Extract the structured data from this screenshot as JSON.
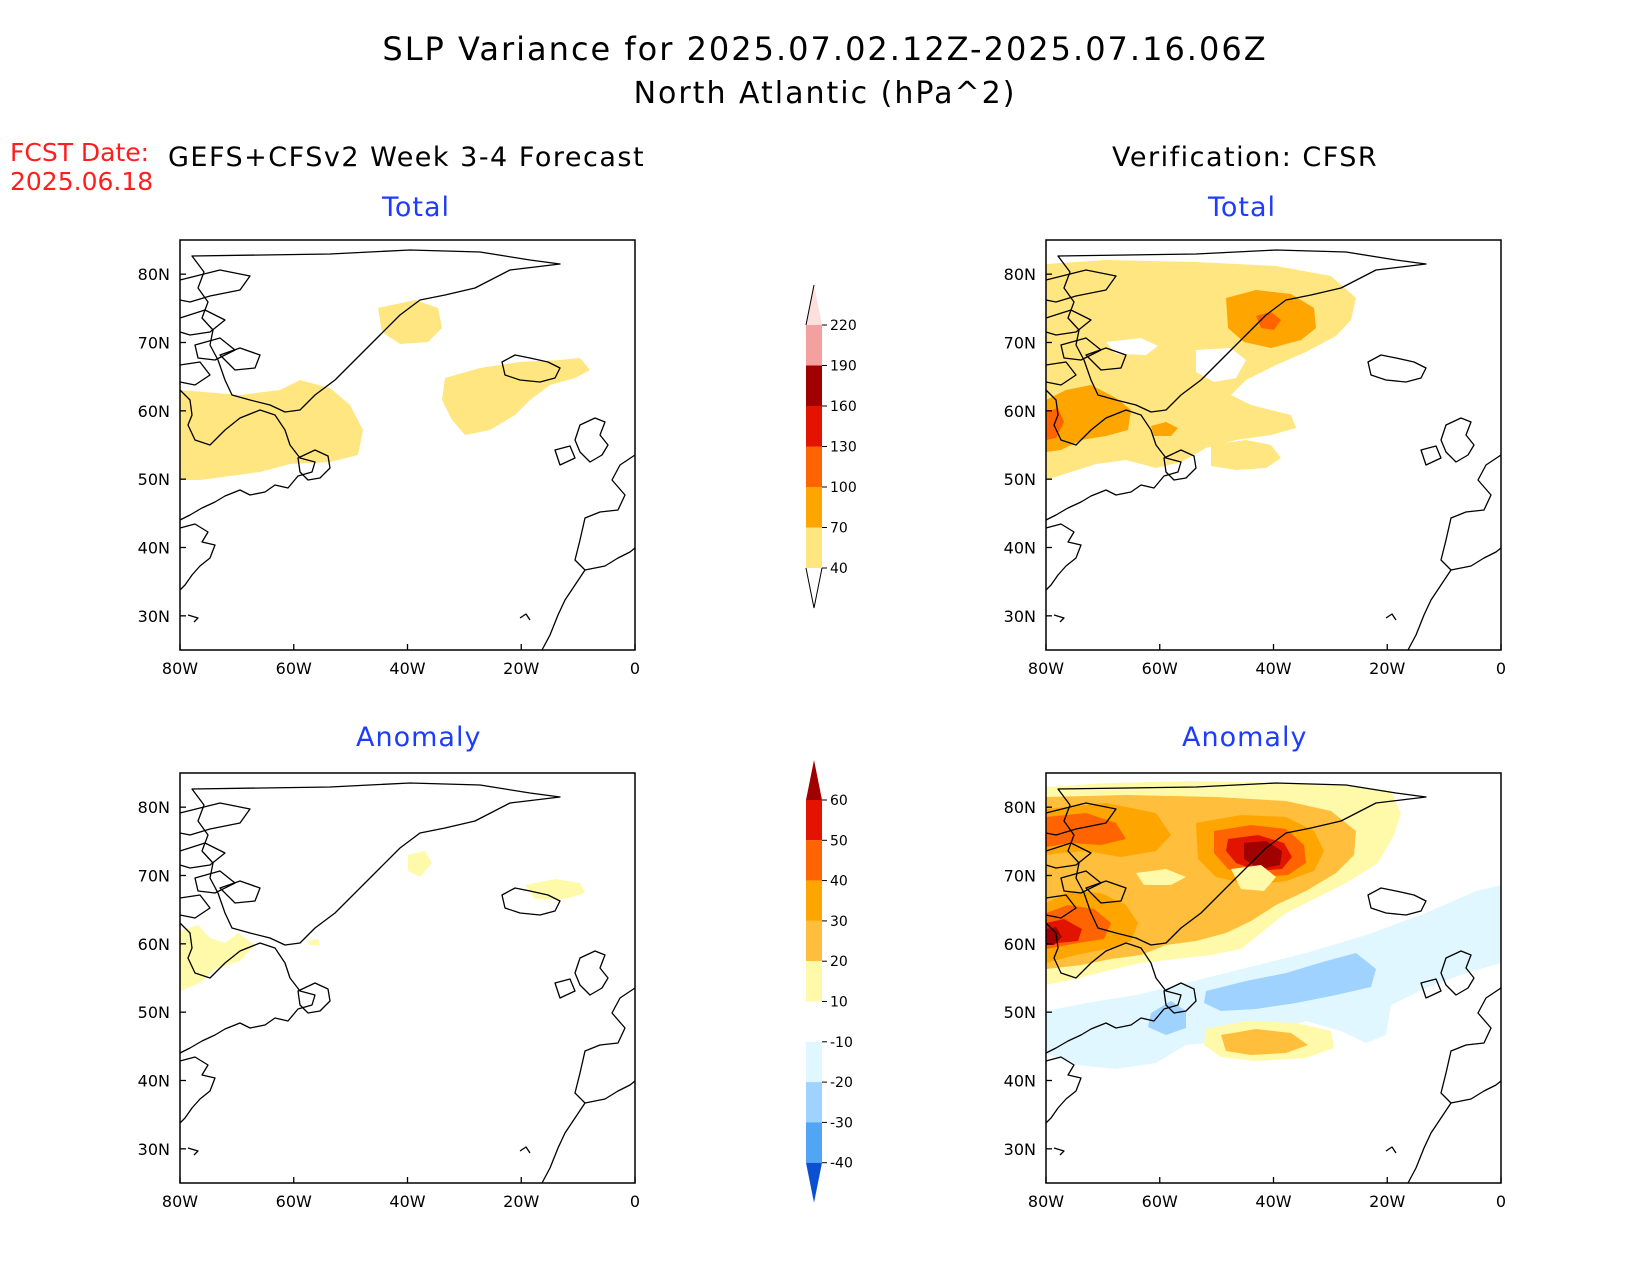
{
  "header": {
    "title_line1": "SLP Variance for 2025.07.02.12Z-2025.07.16.06Z",
    "title_line2": "North Atlantic (hPa^2)",
    "fcst_label": "FCST Date:",
    "fcst_date": "2025.06.18",
    "left_column_title": "GEFS+CFSv2 Week 3-4 Forecast",
    "right_column_title": "Verification: CFSR"
  },
  "panels": {
    "top_left_title": "Total",
    "top_right_title": "Total",
    "bottom_left_title": "Anomaly",
    "bottom_right_title": "Anomaly"
  },
  "map_axes": {
    "lon_ticks": [
      "80W",
      "60W",
      "40W",
      "20W",
      "0"
    ],
    "lat_ticks": [
      "80N",
      "70N",
      "60N",
      "50N",
      "40N",
      "30N"
    ],
    "lon_range": [
      -80,
      0
    ],
    "lat_range": [
      25,
      85
    ]
  },
  "colorbars": {
    "total": {
      "labels": [
        "40",
        "70",
        "100",
        "130",
        "160",
        "190",
        "220"
      ],
      "colors": [
        "#ffe680",
        "#ffa500",
        "#ff6400",
        "#e21400",
        "#a00000",
        "#f5a0a0",
        "#fde0dc"
      ]
    },
    "anomaly": {
      "labels": [
        "60",
        "50",
        "40",
        "30",
        "20",
        "10",
        "-10",
        "-20",
        "-30",
        "-40"
      ],
      "colors": [
        "#a00000",
        "#e21400",
        "#ff6400",
        "#ffa500",
        "#ffbe3c",
        "#fffaaa",
        "#ffffff",
        "#e0f7ff",
        "#a0d2ff",
        "#50a5f5",
        "#1e6eeb",
        "#0a50d2"
      ]
    }
  },
  "colors": {
    "title_blue": "#1e3cff",
    "fcst_red": "#ff1e1e"
  }
}
